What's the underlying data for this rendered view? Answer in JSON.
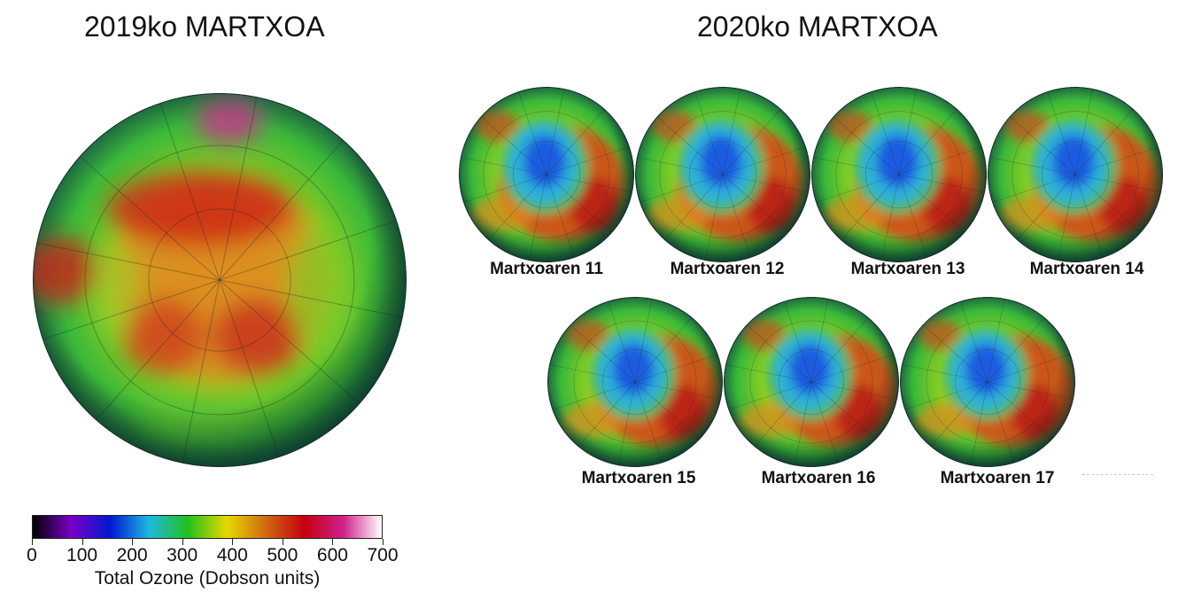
{
  "titles": {
    "left": "2019ko MARTXOA",
    "right": "2020ko MARTXOA"
  },
  "globes": [
    {
      "id": "2019",
      "label": "",
      "hole": 0
    },
    {
      "id": "d11",
      "label": "Martxoaren 11",
      "hole": 1
    },
    {
      "id": "d12",
      "label": "Martxoaren 12",
      "hole": 1
    },
    {
      "id": "d13",
      "label": "Martxoaren 13",
      "hole": 1
    },
    {
      "id": "d14",
      "label": "Martxoaren 14",
      "hole": 1
    },
    {
      "id": "d15",
      "label": "Martxoaren 15",
      "hole": 1
    },
    {
      "id": "d16",
      "label": "Martxoaren 16",
      "hole": 1
    },
    {
      "id": "d17",
      "label": "Martxoaren 17",
      "hole": 1
    }
  ],
  "colorbar": {
    "title": "Total Ozone (Dobson units)",
    "ticks": [
      "0",
      "100",
      "200",
      "300",
      "400",
      "500",
      "600",
      "700"
    ],
    "colors": [
      "#000000",
      "#7a00c8",
      "#0018d0",
      "#1fb8e0",
      "#22c01e",
      "#e6d800",
      "#d06a10",
      "#c40010",
      "#d0208a",
      "#ffffff"
    ]
  }
}
